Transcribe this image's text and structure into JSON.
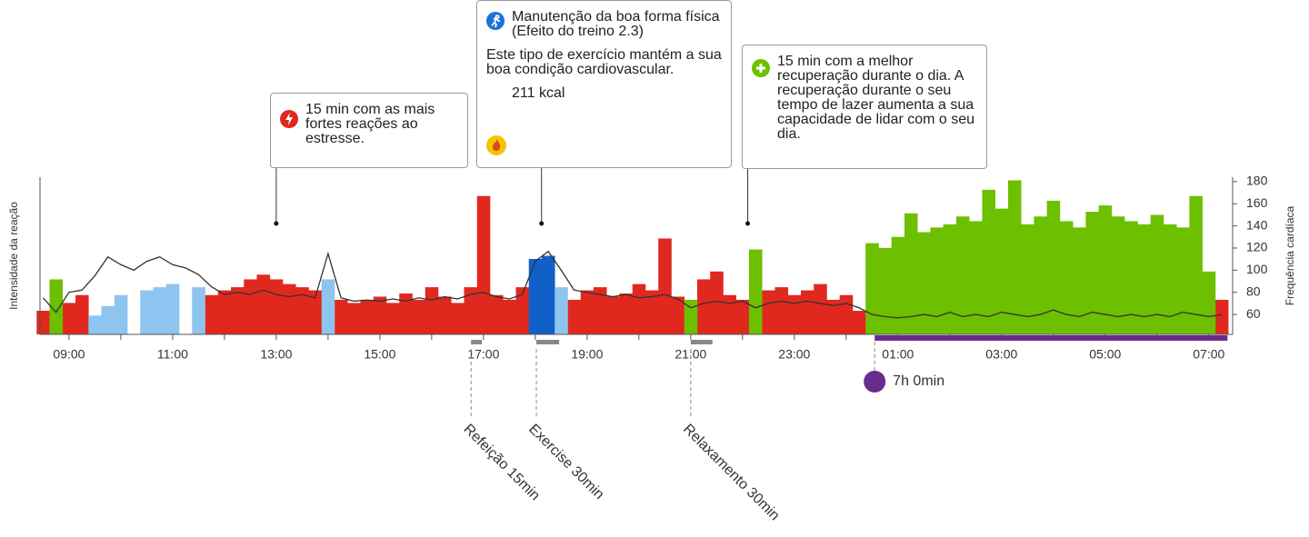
{
  "chart_data": {
    "type": "bar",
    "y_label": "Intensidade da reação",
    "y2_label": "Frequência cardíaca",
    "xlim": [
      8.44,
      31.46
    ],
    "xticks": [
      {
        "value": 9,
        "label": "09:00"
      },
      {
        "value": 11,
        "label": "11:00"
      },
      {
        "value": 13,
        "label": "13:00"
      },
      {
        "value": 15,
        "label": "15:00"
      },
      {
        "value": 17,
        "label": "17:00"
      },
      {
        "value": 19,
        "label": "19:00"
      },
      {
        "value": 21,
        "label": "21:00"
      },
      {
        "value": 23,
        "label": "23:00"
      },
      {
        "value": 25,
        "label": "01:00"
      },
      {
        "value": 27,
        "label": "03:00"
      },
      {
        "value": 29,
        "label": "05:00"
      },
      {
        "value": 31,
        "label": "07:00"
      }
    ],
    "xminorticks": [
      10,
      12,
      14,
      16,
      18,
      20,
      22,
      24,
      26,
      28,
      30
    ],
    "ylim": [
      0,
      100
    ],
    "y2lim": [
      42,
      184
    ],
    "y2ticks": [
      60,
      80,
      100,
      120,
      140,
      160,
      180
    ],
    "x": [
      8.5,
      8.75,
      9,
      9.25,
      9.5,
      9.75,
      10,
      10.25,
      10.5,
      10.75,
      11,
      11.25,
      11.5,
      11.75,
      12,
      12.25,
      12.5,
      12.75,
      13,
      13.25,
      13.5,
      13.75,
      14,
      14.25,
      14.5,
      14.75,
      15,
      15.25,
      15.5,
      15.75,
      16,
      16.25,
      16.5,
      16.75,
      17,
      17.25,
      17.5,
      17.75,
      18,
      18.25,
      18.5,
      18.75,
      19,
      19.25,
      19.5,
      19.75,
      20,
      20.25,
      20.5,
      20.75,
      21,
      21.25,
      21.5,
      21.75,
      22,
      22.25,
      22.5,
      22.75,
      23,
      23.25,
      23.5,
      23.75,
      24,
      24.25,
      24.5,
      24.75,
      25,
      25.25,
      25.5,
      25.75,
      26,
      26.25,
      26.5,
      26.75,
      27,
      27.25,
      27.5,
      27.75,
      28,
      28.25,
      28.5,
      28.75,
      29,
      29.25,
      29.5,
      29.75,
      30,
      30.25,
      30.5,
      30.75,
      31,
      31.25
    ],
    "series": [
      {
        "color": "#e0281f",
        "values": [
          15,
          null,
          20,
          25,
          null,
          null,
          null,
          null,
          null,
          null,
          null,
          null,
          null,
          25,
          28,
          30,
          35,
          38,
          35,
          32,
          30,
          28,
          null,
          22,
          20,
          22,
          24,
          20,
          26,
          22,
          30,
          24,
          20,
          30,
          88,
          25,
          22,
          30,
          null,
          null,
          null,
          22,
          28,
          30,
          24,
          26,
          32,
          28,
          61,
          24,
          null,
          35,
          40,
          25,
          22,
          null,
          28,
          30,
          25,
          28,
          32,
          22,
          25,
          15,
          null,
          null,
          null,
          null,
          null,
          null,
          null,
          null,
          null,
          null,
          null,
          null,
          null,
          null,
          null,
          null,
          null,
          null,
          null,
          null,
          null,
          null,
          null,
          null,
          null,
          null,
          null,
          22
        ]
      },
      {
        "color": "#6cc000",
        "values": [
          null,
          35,
          null,
          null,
          null,
          null,
          null,
          null,
          null,
          null,
          null,
          null,
          null,
          null,
          null,
          null,
          null,
          null,
          null,
          null,
          null,
          null,
          null,
          null,
          null,
          null,
          null,
          null,
          null,
          null,
          null,
          null,
          null,
          null,
          null,
          null,
          null,
          null,
          null,
          null,
          null,
          null,
          null,
          null,
          null,
          null,
          null,
          null,
          null,
          null,
          22,
          null,
          null,
          null,
          null,
          54,
          null,
          null,
          null,
          null,
          null,
          null,
          null,
          null,
          58,
          55,
          62,
          77,
          65,
          68,
          70,
          75,
          72,
          92,
          80,
          98,
          70,
          75,
          85,
          72,
          68,
          78,
          82,
          75,
          72,
          70,
          76,
          70,
          68,
          88,
          40,
          null
        ]
      },
      {
        "color": "#1060c8",
        "values": [
          null,
          null,
          null,
          null,
          null,
          null,
          null,
          null,
          null,
          null,
          null,
          null,
          null,
          null,
          null,
          null,
          null,
          null,
          null,
          null,
          null,
          null,
          null,
          null,
          null,
          null,
          null,
          null,
          null,
          null,
          null,
          null,
          null,
          null,
          null,
          null,
          null,
          null,
          48,
          50,
          null,
          null,
          null,
          null,
          null,
          null,
          null,
          null,
          null,
          null,
          null,
          null,
          null,
          null,
          null,
          null,
          null,
          null,
          null,
          null,
          null,
          null,
          null,
          null,
          null,
          null,
          null,
          null,
          null,
          null,
          null,
          null,
          null,
          null,
          null,
          null,
          null,
          null,
          null,
          null,
          null,
          null,
          null,
          null,
          null,
          null,
          null,
          null,
          null,
          null,
          null,
          null
        ]
      },
      {
        "color": "#8ec4f0",
        "values": [
          null,
          null,
          null,
          null,
          12,
          18,
          25,
          null,
          28,
          30,
          32,
          null,
          30,
          null,
          null,
          null,
          null,
          null,
          null,
          null,
          null,
          null,
          35,
          null,
          null,
          null,
          null,
          null,
          null,
          null,
          null,
          null,
          null,
          null,
          null,
          null,
          null,
          null,
          null,
          null,
          30,
          null,
          null,
          null,
          null,
          null,
          null,
          null,
          null,
          null,
          null,
          null,
          null,
          null,
          null,
          null,
          null,
          null,
          null,
          null,
          null,
          null,
          null,
          null,
          null,
          null,
          null,
          null,
          null,
          null,
          null,
          null,
          null,
          null,
          null,
          null,
          null,
          null,
          null,
          null,
          null,
          null,
          null,
          null,
          null,
          null,
          null,
          null,
          null,
          null,
          null,
          null
        ]
      },
      {
        "type": "line",
        "axis": "y2",
        "color": "#333333",
        "values": [
          75,
          62,
          80,
          82,
          95,
          112,
          105,
          100,
          108,
          112,
          105,
          102,
          96,
          85,
          78,
          80,
          78,
          82,
          78,
          76,
          78,
          75,
          115,
          75,
          72,
          73,
          72,
          74,
          72,
          75,
          73,
          76,
          74,
          78,
          80,
          76,
          74,
          78,
          108,
          117,
          100,
          82,
          80,
          78,
          76,
          78,
          75,
          76,
          78,
          74,
          66,
          70,
          72,
          70,
          72,
          66,
          70,
          72,
          70,
          72,
          70,
          68,
          70,
          66,
          60,
          58,
          57,
          58,
          60,
          58,
          62,
          58,
          60,
          58,
          62,
          60,
          58,
          60,
          64,
          60,
          58,
          62,
          60,
          58,
          60,
          58,
          60,
          58,
          62,
          60,
          58,
          60
        ]
      }
    ],
    "callouts": [
      {
        "at": 13.0,
        "icon_color": "#e0281f",
        "text": "15 min com as mais fortes reações ao estresse."
      },
      {
        "at": 18.12,
        "icon_color": "#1a73d9",
        "title": "Manutenção da boa forma física",
        "subtitle": "(Efeito do treino 2.3)",
        "text": "Este tipo de exercício mantém a sua boa condição cardiovascular.",
        "kcal": "211 kcal"
      },
      {
        "at": 22.1,
        "icon_color": "#6cc000",
        "text": "15 min com a melhor recuperação durante o dia. A recuperação durante o seu tempo de lazer aumenta a sua capacidade de lidar com o seu dia."
      }
    ],
    "events": [
      {
        "label": "Refeição 15min",
        "start": 16.76,
        "end": 16.97
      },
      {
        "label": "Exercise 30min",
        "start": 18.02,
        "end": 18.46
      },
      {
        "label": "Relaxamento 30min",
        "start": 21.0,
        "end": 21.42
      }
    ],
    "sleep": {
      "label": "7h 0min",
      "start": 24.55,
      "end": 31.36,
      "color": "#6a2c8c"
    }
  }
}
